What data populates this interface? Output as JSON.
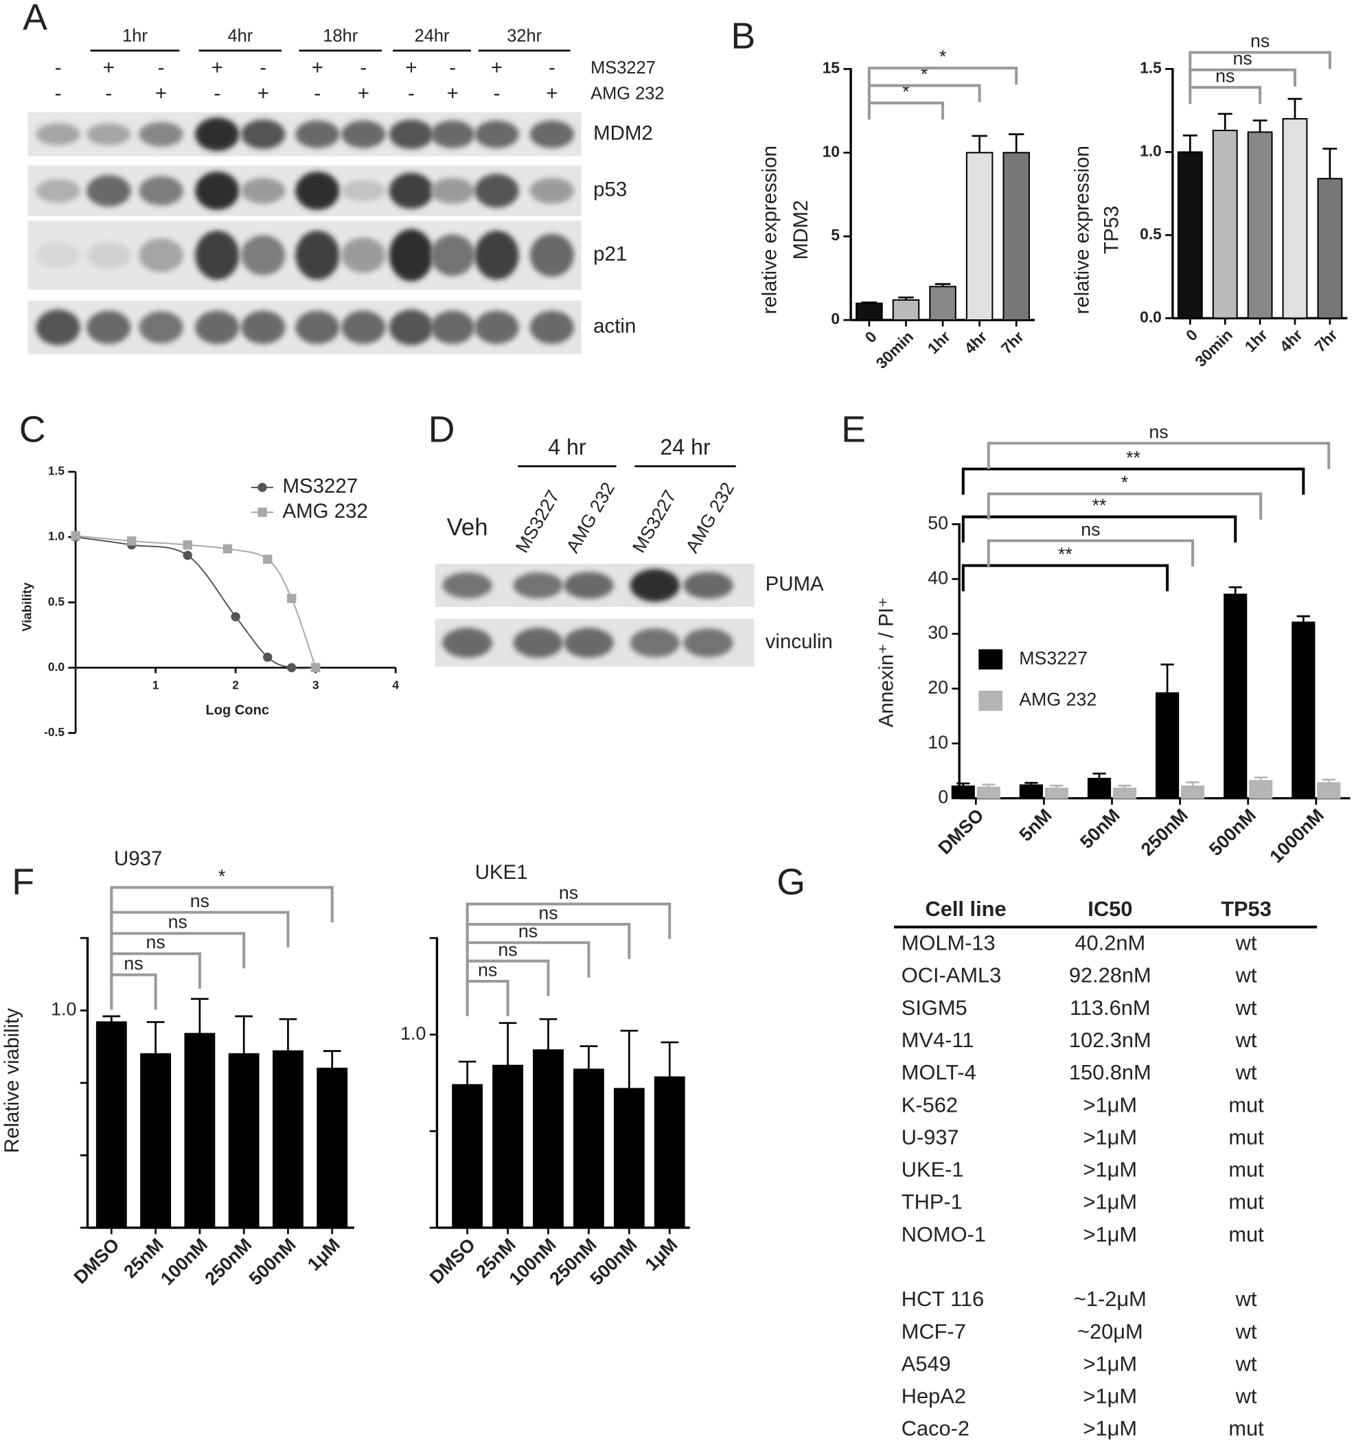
{
  "panel_labels": [
    "A",
    "B",
    "C",
    "D",
    "E",
    "F",
    "G"
  ],
  "blot_a": {
    "timepoints": [
      "1hr",
      "4hr",
      "18hr",
      "24hr",
      "32hr"
    ],
    "treatments": [
      {
        "name": "MS3227",
        "marks": [
          "-",
          "+",
          "-",
          "+",
          "-",
          "+",
          "-",
          "+",
          "-",
          "+",
          "-"
        ]
      },
      {
        "name": "AMG 232",
        "marks": [
          "-",
          "-",
          "+",
          "-",
          "+",
          "-",
          "+",
          "-",
          "+",
          "-",
          "+"
        ]
      }
    ],
    "bands": [
      "MDM2",
      "p53",
      "p21",
      "actin"
    ]
  },
  "blot_d": {
    "timepoints": [
      "4 hr",
      "24 hr"
    ],
    "lanes": [
      "Veh",
      "MS3227",
      "AMG 232",
      "MS3227",
      "AMG 232"
    ],
    "bands": [
      "PUMA",
      "vinculin"
    ]
  },
  "chart_data": [
    {
      "type": "bar",
      "ylabel": [
        "relative expression",
        "MDM2"
      ],
      "categories": [
        "0",
        "30min",
        "1hr",
        "4hr",
        "7hr"
      ],
      "values": [
        1,
        1.2,
        2,
        10,
        10
      ],
      "errors": [
        0.05,
        0.15,
        0.15,
        1,
        1.1
      ],
      "colors": [
        "#111111",
        "#bbbbbb",
        "#888888",
        "#e0e0e0",
        "#777777"
      ],
      "bar_outline": "#000000",
      "ylim": [
        0,
        15
      ],
      "yticks": [
        0,
        5,
        10,
        15
      ],
      "brackets": [
        {
          "to": "1hr",
          "label": "*"
        },
        {
          "to": "4hr",
          "label": "*"
        },
        {
          "to": "7hr",
          "label": "*"
        }
      ]
    },
    {
      "type": "bar",
      "ylabel": [
        "relative expression",
        "TP53"
      ],
      "categories": [
        "0",
        "30min",
        "1hr",
        "4hr",
        "7hr"
      ],
      "values": [
        1,
        1.13,
        1.12,
        1.2,
        0.84
      ],
      "errors": [
        0.1,
        0.1,
        0.07,
        0.12,
        0.18
      ],
      "colors": [
        "#111111",
        "#bbbbbb",
        "#888888",
        "#e0e0e0",
        "#777777"
      ],
      "bar_outline": "#000000",
      "ylim": [
        0,
        1.5
      ],
      "yticks": [
        {
          "value": 0,
          "label": "0.0"
        },
        {
          "value": 0.5,
          "label": "0.5"
        },
        {
          "value": 1,
          "label": "1.0"
        },
        {
          "value": 1.5,
          "label": "1.5"
        }
      ],
      "brackets": [
        {
          "to": "1hr",
          "label": "ns"
        },
        {
          "to": "4hr",
          "label": "ns"
        },
        {
          "to": "7hr",
          "label": "ns"
        }
      ]
    },
    {
      "type": "scatter",
      "xlabel": "Log Conc",
      "ylabel": "Viability",
      "legend": "upper right",
      "xlim": [
        0,
        4
      ],
      "xticks": [
        1,
        2,
        3,
        4
      ],
      "ylim": [
        -0.5,
        1.5
      ],
      "yticks": [
        {
          "value": -0.5,
          "label": "-0.5"
        },
        {
          "value": 0,
          "label": "0.0"
        },
        {
          "value": 0.5,
          "label": "0.5"
        },
        {
          "value": 1,
          "label": "1.0"
        },
        {
          "value": 1.5,
          "label": "1.5"
        }
      ],
      "series": [
        {
          "name": "MS3227",
          "color": "#555555",
          "marker": "circle",
          "x": [
            0,
            0.7,
            1.4,
            2,
            2.4,
            2.7,
            3
          ],
          "values": [
            1,
            0.94,
            0.86,
            0.39,
            0.08,
            0,
            0
          ]
        },
        {
          "name": "AMG 232",
          "color": "#a8a8a8",
          "marker": "square",
          "x": [
            0,
            0.7,
            1.4,
            1.9,
            2.4,
            2.7,
            3
          ],
          "values": [
            1.01,
            0.97,
            0.94,
            0.91,
            0.83,
            0.53,
            0
          ]
        }
      ]
    },
    {
      "type": "bar",
      "ylabel": "Annexin⁺ / PI⁺",
      "legend": "center left",
      "categories": [
        "DMSO",
        "5nM",
        "50nM",
        "250nM",
        "500nM",
        "1000nM"
      ],
      "series": [
        {
          "name": "MS3227",
          "color": "#000000",
          "values": [
            2.2,
            2.4,
            3.6,
            19.2,
            37.2,
            32.1
          ],
          "errors": [
            0.5,
            0.4,
            0.9,
            5.2,
            1.3,
            1.1
          ]
        },
        {
          "name": "AMG 232",
          "color": "#b5b5b5",
          "values": [
            2,
            1.8,
            1.8,
            2.2,
            3.2,
            2.8
          ],
          "errors": [
            0.5,
            0.5,
            0.5,
            0.7,
            0.6,
            0.6
          ]
        }
      ],
      "ylim": [
        0,
        50
      ],
      "yticks": [
        0,
        10,
        20,
        30,
        40,
        50
      ],
      "brackets": [
        {
          "series": "MS3227",
          "to": "250nM",
          "label": "**"
        },
        {
          "series": "AMG 232",
          "to": "250nM",
          "label": "ns"
        },
        {
          "series": "MS3227",
          "to": "500nM",
          "label": "**"
        },
        {
          "series": "AMG 232",
          "to": "500nM",
          "label": "*"
        },
        {
          "series": "MS3227",
          "to": "1000nM",
          "label": "**"
        },
        {
          "series": "AMG 232",
          "to": "1000nM",
          "label": "ns"
        }
      ]
    },
    {
      "type": "bar",
      "title": "U937",
      "ylabel": "Relative viability",
      "categories": [
        "DMSO",
        "25nM",
        "100nM",
        "250nM",
        "500nM",
        "1μM"
      ],
      "values": [
        0.96,
        0.85,
        0.92,
        0.85,
        0.86,
        0.8
      ],
      "errors": [
        0.02,
        0.11,
        0.12,
        0.13,
        0.11,
        0.06
      ],
      "color": "#000000",
      "ylim": [
        0.25,
        1.25
      ],
      "yticks": [
        {
          "value": 0.25,
          "label": null
        },
        {
          "value": 0.5,
          "label": null
        },
        {
          "value": 0.75,
          "label": null
        },
        {
          "value": 1,
          "label": "1.0"
        },
        {
          "value": 1.25,
          "label": null
        }
      ],
      "brackets": [
        {
          "to": "25nM",
          "label": "ns"
        },
        {
          "to": "100nM",
          "label": "ns"
        },
        {
          "to": "250nM",
          "label": "ns"
        },
        {
          "to": "500nM",
          "label": "ns"
        },
        {
          "to": "1μM",
          "label": "*"
        }
      ]
    },
    {
      "type": "bar",
      "title": "UKE1",
      "categories": [
        "DMSO",
        "25nM",
        "100nM",
        "250nM",
        "500nM",
        "1μM"
      ],
      "values": [
        0.87,
        0.92,
        0.96,
        0.91,
        0.86,
        0.89
      ],
      "errors": [
        0.06,
        0.11,
        0.08,
        0.06,
        0.15,
        0.09
      ],
      "color": "#000000",
      "ylim": [
        0.5,
        1.25
      ],
      "yticks": [
        {
          "value": 0.5,
          "label": null
        },
        {
          "value": 0.75,
          "label": null
        },
        {
          "value": 1,
          "label": "1.0"
        },
        {
          "value": 1.25,
          "label": null
        }
      ],
      "brackets": [
        {
          "to": "25nM",
          "label": "ns"
        },
        {
          "to": "100nM",
          "label": "ns"
        },
        {
          "to": "250nM",
          "label": "ns"
        },
        {
          "to": "500nM",
          "label": "ns"
        },
        {
          "to": "1μM",
          "label": "ns"
        }
      ]
    }
  ],
  "table_g": {
    "header": [
      "Cell line",
      "IC50",
      "TP53"
    ],
    "groups": [
      [
        [
          "MOLM-13",
          "40.2nM",
          "wt"
        ],
        [
          "OCI-AML3",
          "92.28nM",
          "wt"
        ],
        [
          "SIGM5",
          "113.6nM",
          "wt"
        ],
        [
          "MV4-11",
          "102.3nM",
          "wt"
        ],
        [
          "MOLT-4",
          "150.8nM",
          "wt"
        ],
        [
          "K-562",
          ">1μM",
          "mut"
        ],
        [
          "U-937",
          ">1μM",
          "mut"
        ],
        [
          "UKE-1",
          ">1μM",
          "mut"
        ],
        [
          "THP-1",
          ">1μM",
          "mut"
        ],
        [
          "NOMO-1",
          ">1μM",
          "mut"
        ]
      ],
      [
        [
          "HCT 116",
          "~1-2μM",
          "wt"
        ],
        [
          "MCF-7",
          "~20μM",
          "wt"
        ],
        [
          "A549",
          ">1μM",
          "wt"
        ],
        [
          "HepA2",
          ">1μM",
          "wt"
        ],
        [
          "Caco-2",
          ">1μM",
          "mut"
        ]
      ]
    ]
  }
}
